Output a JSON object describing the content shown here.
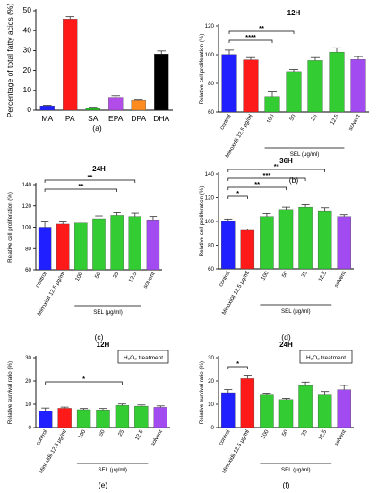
{
  "panel_labels": [
    "(a)",
    "(b)",
    "(c)",
    "(d)",
    "(e)",
    "(f)"
  ],
  "chart_data": [
    {
      "type": "bar",
      "panel": "(a)",
      "title": "",
      "ylabel": "Percentage of total fatty acids (%)",
      "xlabel": "",
      "ylim": [
        0,
        50
      ],
      "yticks": [
        0,
        10,
        20,
        30,
        40,
        50
      ],
      "categories": [
        "MA",
        "PA",
        "SA",
        "EPA",
        "DPA",
        "DHA"
      ],
      "values": [
        2.2,
        45.8,
        1.2,
        6.5,
        4.8,
        28.3
      ],
      "errors": [
        0.3,
        1.2,
        0.3,
        0.8,
        0.3,
        1.5
      ],
      "colors": [
        "#1f1fff",
        "#ff1a1a",
        "#22b522",
        "#b24ce8",
        "#ff8a1e",
        "#000000"
      ],
      "tick_rotation": 0,
      "significance": [],
      "sel_label": "",
      "annotation": ""
    },
    {
      "type": "bar",
      "panel": "(b)",
      "title": "12H",
      "ylabel": "Relative cell proliferation (%)",
      "xlabel": "",
      "ylim": [
        60,
        120
      ],
      "yticks": [
        60,
        80,
        100,
        120
      ],
      "categories": [
        "control",
        "Minoxidil 12.5 μg/ml",
        "100",
        "50",
        "25",
        "12.5",
        "solvent"
      ],
      "values": [
        100.2,
        96.5,
        70.8,
        88.2,
        96.0,
        101.8,
        96.7
      ],
      "errors": [
        3.0,
        1.5,
        3.2,
        1.5,
        2.0,
        3.0,
        2.0
      ],
      "colors": [
        "#1f1fff",
        "#ff1a1a",
        "#33cc33",
        "#33cc33",
        "#33cc33",
        "#33cc33",
        "#a14bf0"
      ],
      "tick_rotation": -60,
      "significance": [
        {
          "from": 0,
          "to": 3,
          "label": "**"
        },
        {
          "from": 0,
          "to": 2,
          "label": "****"
        }
      ],
      "sel_label": "SEL (μg/ml)",
      "sel_range": [
        2,
        5
      ],
      "annotation": ""
    },
    {
      "type": "bar",
      "panel": "(c)",
      "title": "24H",
      "ylabel": "Relative cell proliferation (%)",
      "xlabel": "",
      "ylim": [
        60,
        140
      ],
      "yticks": [
        60,
        80,
        100,
        120,
        140
      ],
      "categories": [
        "control",
        "Minoxidil 12.5 μg/ml",
        "100",
        "50",
        "25",
        "12.5",
        "solvent"
      ],
      "values": [
        100.0,
        103.0,
        104.0,
        108.0,
        111.0,
        110.0,
        107.0
      ],
      "errors": [
        5.0,
        2.0,
        2.0,
        2.5,
        2.5,
        3.0,
        3.0
      ],
      "colors": [
        "#1f1fff",
        "#ff1a1a",
        "#33cc33",
        "#33cc33",
        "#33cc33",
        "#33cc33",
        "#a14bf0"
      ],
      "tick_rotation": -60,
      "significance": [
        {
          "from": 0,
          "to": 5,
          "label": "**"
        },
        {
          "from": 0,
          "to": 4,
          "label": "**"
        }
      ],
      "sel_label": "SEL (μg/ml)",
      "sel_range": [
        2,
        5
      ],
      "annotation": ""
    },
    {
      "type": "bar",
      "panel": "(d)",
      "title": "36H",
      "ylabel": "Relative cell proliferation (%)",
      "xlabel": "",
      "ylim": [
        60,
        140
      ],
      "yticks": [
        60,
        80,
        100,
        120,
        140
      ],
      "categories": [
        "control",
        "Minoxidil 12.5 μg/ml",
        "100",
        "50",
        "25",
        "12.5",
        "solvent"
      ],
      "values": [
        100.0,
        92.5,
        104.0,
        110.0,
        112.0,
        109.0,
        104.0
      ],
      "errors": [
        2.0,
        1.0,
        2.5,
        2.0,
        2.0,
        2.5,
        1.5
      ],
      "colors": [
        "#1f1fff",
        "#ff1a1a",
        "#33cc33",
        "#33cc33",
        "#33cc33",
        "#33cc33",
        "#a14bf0"
      ],
      "tick_rotation": -60,
      "significance": [
        {
          "from": 0,
          "to": 5,
          "label": "**"
        },
        {
          "from": 0,
          "to": 4,
          "label": "***"
        },
        {
          "from": 0,
          "to": 3,
          "label": "**"
        },
        {
          "from": 0,
          "to": 1,
          "label": "*"
        }
      ],
      "sel_label": "SEL (μg/ml)",
      "sel_range": [
        2,
        5
      ],
      "annotation": ""
    },
    {
      "type": "bar",
      "panel": "(e)",
      "title": "12H",
      "ylabel": "Relative survival ratio (%)",
      "xlabel": "",
      "ylim": [
        0,
        30
      ],
      "yticks": [
        0,
        10,
        20,
        30
      ],
      "categories": [
        "control",
        "Minoxidil 12.5 μg/ml",
        "100",
        "50",
        "25",
        "12.5",
        "solvent"
      ],
      "values": [
        7.2,
        8.3,
        7.7,
        7.6,
        9.5,
        9.2,
        8.7
      ],
      "errors": [
        1.2,
        0.5,
        0.5,
        0.6,
        0.6,
        0.5,
        0.6
      ],
      "colors": [
        "#1f1fff",
        "#ff1a1a",
        "#33cc33",
        "#33cc33",
        "#33cc33",
        "#33cc33",
        "#a14bf0"
      ],
      "tick_rotation": -60,
      "significance": [
        {
          "from": 0,
          "to": 4,
          "label": "*"
        }
      ],
      "sel_label": "SEL (μg/ml)",
      "sel_range": [
        2,
        5
      ],
      "annotation": "H₂O₂ treatment"
    },
    {
      "type": "bar",
      "panel": "(f)",
      "title": "24H",
      "ylabel": "Relative survival ratio (%)",
      "xlabel": "",
      "ylim": [
        0,
        30
      ],
      "yticks": [
        0,
        10,
        20,
        30
      ],
      "categories": [
        "control",
        "Minoxidil 12.5 μg/ml",
        "100",
        "50",
        "25",
        "12.5",
        "solvent"
      ],
      "values": [
        15.0,
        21.0,
        14.0,
        12.0,
        18.0,
        14.0,
        16.3
      ],
      "errors": [
        1.3,
        1.5,
        0.8,
        0.5,
        1.5,
        1.5,
        1.8
      ],
      "colors": [
        "#1f1fff",
        "#ff1a1a",
        "#33cc33",
        "#33cc33",
        "#33cc33",
        "#33cc33",
        "#a14bf0"
      ],
      "tick_rotation": -60,
      "significance": [
        {
          "from": 0,
          "to": 1,
          "label": "*"
        }
      ],
      "sel_label": "SEL (μg/ml)",
      "sel_range": [
        2,
        5
      ],
      "annotation": "H₂O₂ treatment"
    }
  ]
}
